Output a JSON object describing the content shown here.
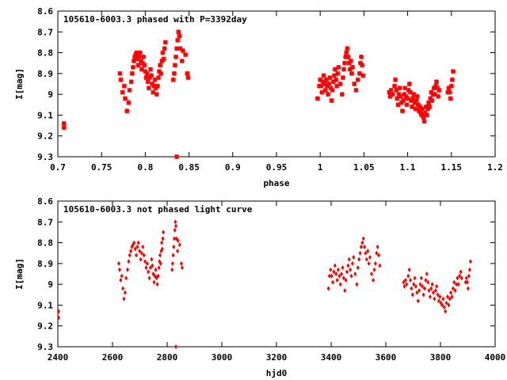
{
  "chart_data": [
    {
      "type": "scatter",
      "title": "105610-6003.3 phased with P=3392day",
      "xlabel": "phase",
      "ylabel": "I[mag]",
      "xlim": [
        0.7,
        1.2
      ],
      "ylim": [
        8.6,
        9.3
      ],
      "y_inverted": true,
      "x_ticks": [
        "0.7",
        "0.75",
        "0.8",
        "0.85",
        "0.9",
        "0.95",
        "1",
        "1.05",
        "1.1",
        "1.15",
        "1.2"
      ],
      "y_ticks": [
        "8.6",
        "8.7",
        "8.8",
        "8.9",
        "9",
        "9.1",
        "9.2",
        "9.3"
      ],
      "marker": "cross",
      "color": "#ff0000",
      "points": [
        [
          0.707,
          9.14
        ],
        [
          0.707,
          9.16
        ],
        [
          0.771,
          8.9
        ],
        [
          0.772,
          8.93
        ],
        [
          0.774,
          8.99
        ],
        [
          0.776,
          8.96
        ],
        [
          0.777,
          9.02
        ],
        [
          0.779,
          9.08
        ],
        [
          0.781,
          9.04
        ],
        [
          0.782,
          8.98
        ],
        [
          0.784,
          8.94
        ],
        [
          0.785,
          8.9
        ],
        [
          0.786,
          8.87
        ],
        [
          0.787,
          8.84
        ],
        [
          0.788,
          8.82
        ],
        [
          0.789,
          8.81
        ],
        [
          0.79,
          8.8
        ],
        [
          0.791,
          8.83
        ],
        [
          0.792,
          8.86
        ],
        [
          0.793,
          8.82
        ],
        [
          0.794,
          8.8
        ],
        [
          0.795,
          8.84
        ],
        [
          0.796,
          8.88
        ],
        [
          0.797,
          8.85
        ],
        [
          0.798,
          8.82
        ],
        [
          0.799,
          8.86
        ],
        [
          0.8,
          8.89
        ],
        [
          0.801,
          8.92
        ],
        [
          0.802,
          8.9
        ],
        [
          0.803,
          8.94
        ],
        [
          0.804,
          8.97
        ],
        [
          0.805,
          8.92
        ],
        [
          0.806,
          8.88
        ],
        [
          0.807,
          8.91
        ],
        [
          0.808,
          8.95
        ],
        [
          0.809,
          8.99
        ],
        [
          0.81,
          8.96
        ],
        [
          0.811,
          8.93
        ],
        [
          0.812,
          8.97
        ],
        [
          0.813,
          9.0
        ],
        [
          0.814,
          8.96
        ],
        [
          0.815,
          8.92
        ],
        [
          0.816,
          8.89
        ],
        [
          0.817,
          8.86
        ],
        [
          0.818,
          8.9
        ],
        [
          0.819,
          8.84
        ],
        [
          0.82,
          8.8
        ],
        [
          0.821,
          8.83
        ],
        [
          0.822,
          8.78
        ],
        [
          0.823,
          8.75
        ],
        [
          0.832,
          8.93
        ],
        [
          0.833,
          8.9
        ],
        [
          0.834,
          8.86
        ],
        [
          0.835,
          8.82
        ],
        [
          0.836,
          8.78
        ],
        [
          0.837,
          8.74
        ],
        [
          0.838,
          8.7
        ],
        [
          0.839,
          8.72
        ],
        [
          0.84,
          8.78
        ],
        [
          0.842,
          8.84
        ],
        [
          0.843,
          8.79
        ],
        [
          0.846,
          8.81
        ],
        [
          0.848,
          8.9
        ],
        [
          0.849,
          8.92
        ],
        [
          0.836,
          9.3
        ],
        [
          0.997,
          9.02
        ],
        [
          0.999,
          8.96
        ],
        [
          1.0,
          8.93
        ],
        [
          1.001,
          8.96
        ],
        [
          1.002,
          8.99
        ],
        [
          1.003,
          8.94
        ],
        [
          1.004,
          8.91
        ],
        [
          1.005,
          8.95
        ],
        [
          1.006,
          8.98
        ],
        [
          1.007,
          8.93
        ],
        [
          1.008,
          8.96
        ],
        [
          1.009,
          9.0
        ],
        [
          1.01,
          8.95
        ],
        [
          1.011,
          8.92
        ],
        [
          1.012,
          8.97
        ],
        [
          1.013,
          9.03
        ],
        [
          1.014,
          8.98
        ],
        [
          1.015,
          8.94
        ],
        [
          1.016,
          8.91
        ],
        [
          1.017,
          8.88
        ],
        [
          1.018,
          8.93
        ],
        [
          1.019,
          8.96
        ],
        [
          1.02,
          8.9
        ],
        [
          1.021,
          8.87
        ],
        [
          1.023,
          8.95
        ],
        [
          1.025,
          9.0
        ],
        [
          1.026,
          8.92
        ],
        [
          1.027,
          8.88
        ],
        [
          1.028,
          8.85
        ],
        [
          1.029,
          8.82
        ],
        [
          1.03,
          8.8
        ],
        [
          1.031,
          8.78
        ],
        [
          1.032,
          8.82
        ],
        [
          1.033,
          8.85
        ],
        [
          1.034,
          8.88
        ],
        [
          1.035,
          8.84
        ],
        [
          1.036,
          8.9
        ],
        [
          1.037,
          8.87
        ],
        [
          1.039,
          8.95
        ],
        [
          1.041,
          8.98
        ],
        [
          1.043,
          8.93
        ],
        [
          1.045,
          8.9
        ],
        [
          1.046,
          8.85
        ],
        [
          1.047,
          8.82
        ],
        [
          1.048,
          8.86
        ],
        [
          1.049,
          8.91
        ],
        [
          1.079,
          8.99
        ],
        [
          1.08,
          9.01
        ],
        [
          1.081,
          8.98
        ],
        [
          1.083,
          9.0
        ],
        [
          1.085,
          8.96
        ],
        [
          1.086,
          8.93
        ],
        [
          1.087,
          8.98
        ],
        [
          1.088,
          9.02
        ],
        [
          1.089,
          9.05
        ],
        [
          1.09,
          9.0
        ],
        [
          1.091,
          8.97
        ],
        [
          1.092,
          9.01
        ],
        [
          1.093,
          9.04
        ],
        [
          1.094,
          9.08
        ],
        [
          1.095,
          9.03
        ],
        [
          1.096,
          9.0
        ],
        [
          1.097,
          8.97
        ],
        [
          1.098,
          9.01
        ],
        [
          1.099,
          9.05
        ],
        [
          1.1,
          9.02
        ],
        [
          1.101,
          8.98
        ],
        [
          1.102,
          8.95
        ],
        [
          1.103,
          8.99
        ],
        [
          1.104,
          9.03
        ],
        [
          1.105,
          9.06
        ],
        [
          1.106,
          9.02
        ],
        [
          1.107,
          9.0
        ],
        [
          1.108,
          9.04
        ],
        [
          1.109,
          9.07
        ],
        [
          1.11,
          9.03
        ],
        [
          1.111,
          9.01
        ],
        [
          1.112,
          9.05
        ],
        [
          1.113,
          9.08
        ],
        [
          1.114,
          9.06
        ],
        [
          1.115,
          9.09
        ],
        [
          1.116,
          9.1
        ],
        [
          1.117,
          9.07
        ],
        [
          1.118,
          9.11
        ],
        [
          1.119,
          9.13
        ],
        [
          1.12,
          9.09
        ],
        [
          1.121,
          9.06
        ],
        [
          1.122,
          9.1
        ],
        [
          1.123,
          9.07
        ],
        [
          1.124,
          9.04
        ],
        [
          1.125,
          9.06
        ],
        [
          1.126,
          9.02
        ],
        [
          1.127,
          8.99
        ],
        [
          1.128,
          9.03
        ],
        [
          1.129,
          9.0
        ],
        [
          1.13,
          8.97
        ],
        [
          1.131,
          9.0
        ],
        [
          1.132,
          8.96
        ],
        [
          1.133,
          8.94
        ],
        [
          1.134,
          8.97
        ],
        [
          1.135,
          9.01
        ],
        [
          1.136,
          8.98
        ],
        [
          1.146,
          8.99
        ],
        [
          1.147,
          8.97
        ],
        [
          1.148,
          8.99
        ],
        [
          1.149,
          9.02
        ],
        [
          1.15,
          8.96
        ],
        [
          1.151,
          8.93
        ],
        [
          1.152,
          8.89
        ]
      ]
    },
    {
      "type": "scatter",
      "title": "105610-6003.3 not phased light curve",
      "xlabel": "hjd0",
      "ylabel": "I[mag]",
      "xlim": [
        2400,
        4000
      ],
      "ylim": [
        8.6,
        9.3
      ],
      "y_inverted": true,
      "x_ticks": [
        "2400",
        "2600",
        "2800",
        "3000",
        "3200",
        "3400",
        "3600",
        "3800",
        "4000"
      ],
      "y_ticks": [
        "8.6",
        "8.7",
        "8.8",
        "8.9",
        "9",
        "9.1",
        "9.2",
        "9.3"
      ],
      "marker": "diamond",
      "color": "#ff0000",
      "points": [
        [
          2403,
          9.13
        ],
        [
          2403,
          9.16
        ],
        [
          2623,
          8.9
        ],
        [
          2626,
          8.93
        ],
        [
          2630,
          8.98
        ],
        [
          2634,
          8.96
        ],
        [
          2638,
          9.02
        ],
        [
          2642,
          9.07
        ],
        [
          2646,
          9.04
        ],
        [
          2650,
          8.97
        ],
        [
          2655,
          8.93
        ],
        [
          2659,
          8.89
        ],
        [
          2663,
          8.86
        ],
        [
          2667,
          8.84
        ],
        [
          2671,
          8.82
        ],
        [
          2675,
          8.81
        ],
        [
          2679,
          8.8
        ],
        [
          2683,
          8.83
        ],
        [
          2687,
          8.86
        ],
        [
          2691,
          8.82
        ],
        [
          2695,
          8.8
        ],
        [
          2699,
          8.84
        ],
        [
          2703,
          8.88
        ],
        [
          2707,
          8.85
        ],
        [
          2711,
          8.82
        ],
        [
          2715,
          8.86
        ],
        [
          2719,
          8.89
        ],
        [
          2723,
          8.92
        ],
        [
          2727,
          8.9
        ],
        [
          2731,
          8.94
        ],
        [
          2735,
          8.97
        ],
        [
          2739,
          8.92
        ],
        [
          2743,
          8.88
        ],
        [
          2746,
          8.91
        ],
        [
          2749,
          8.95
        ],
        [
          2752,
          8.99
        ],
        [
          2755,
          8.96
        ],
        [
          2758,
          8.93
        ],
        [
          2761,
          8.97
        ],
        [
          2764,
          9.0
        ],
        [
          2767,
          8.96
        ],
        [
          2770,
          8.92
        ],
        [
          2772,
          8.89
        ],
        [
          2774,
          8.86
        ],
        [
          2776,
          8.9
        ],
        [
          2778,
          8.84
        ],
        [
          2780,
          8.8
        ],
        [
          2782,
          8.83
        ],
        [
          2784,
          8.78
        ],
        [
          2786,
          8.75
        ],
        [
          2818,
          8.93
        ],
        [
          2820,
          8.9
        ],
        [
          2822,
          8.86
        ],
        [
          2824,
          8.82
        ],
        [
          2826,
          8.78
        ],
        [
          2828,
          8.74
        ],
        [
          2830,
          8.7
        ],
        [
          2832,
          8.72
        ],
        [
          2834,
          8.78
        ],
        [
          2838,
          8.84
        ],
        [
          2840,
          8.79
        ],
        [
          2846,
          8.81
        ],
        [
          2852,
          8.9
        ],
        [
          2855,
          8.92
        ],
        [
          2832,
          9.3
        ],
        [
          3390,
          9.02
        ],
        [
          3394,
          8.96
        ],
        [
          3398,
          8.93
        ],
        [
          3402,
          8.96
        ],
        [
          3406,
          8.99
        ],
        [
          3410,
          8.94
        ],
        [
          3414,
          8.91
        ],
        [
          3418,
          8.95
        ],
        [
          3422,
          8.98
        ],
        [
          3426,
          8.93
        ],
        [
          3430,
          8.96
        ],
        [
          3434,
          9.0
        ],
        [
          3438,
          8.95
        ],
        [
          3442,
          8.92
        ],
        [
          3446,
          8.97
        ],
        [
          3450,
          9.03
        ],
        [
          3454,
          8.98
        ],
        [
          3458,
          8.94
        ],
        [
          3462,
          8.91
        ],
        [
          3466,
          8.88
        ],
        [
          3470,
          8.93
        ],
        [
          3474,
          8.96
        ],
        [
          3478,
          8.9
        ],
        [
          3482,
          8.87
        ],
        [
          3488,
          8.95
        ],
        [
          3494,
          9.0
        ],
        [
          3498,
          8.92
        ],
        [
          3502,
          8.88
        ],
        [
          3506,
          8.85
        ],
        [
          3510,
          8.82
        ],
        [
          3514,
          8.8
        ],
        [
          3518,
          8.78
        ],
        [
          3522,
          8.82
        ],
        [
          3526,
          8.85
        ],
        [
          3530,
          8.88
        ],
        [
          3534,
          8.84
        ],
        [
          3538,
          8.9
        ],
        [
          3542,
          8.87
        ],
        [
          3548,
          8.95
        ],
        [
          3554,
          8.98
        ],
        [
          3558,
          8.93
        ],
        [
          3562,
          8.9
        ],
        [
          3566,
          8.85
        ],
        [
          3570,
          8.82
        ],
        [
          3574,
          8.86
        ],
        [
          3578,
          8.91
        ],
        [
          3665,
          8.99
        ],
        [
          3668,
          9.01
        ],
        [
          3672,
          8.98
        ],
        [
          3676,
          9.0
        ],
        [
          3682,
          8.96
        ],
        [
          3686,
          8.93
        ],
        [
          3690,
          8.98
        ],
        [
          3694,
          9.02
        ],
        [
          3698,
          9.05
        ],
        [
          3702,
          9.0
        ],
        [
          3706,
          8.97
        ],
        [
          3710,
          9.01
        ],
        [
          3714,
          9.04
        ],
        [
          3718,
          9.08
        ],
        [
          3722,
          9.03
        ],
        [
          3726,
          9.0
        ],
        [
          3730,
          8.97
        ],
        [
          3734,
          9.01
        ],
        [
          3738,
          9.05
        ],
        [
          3742,
          9.02
        ],
        [
          3746,
          8.98
        ],
        [
          3750,
          8.95
        ],
        [
          3754,
          8.99
        ],
        [
          3758,
          9.03
        ],
        [
          3762,
          9.06
        ],
        [
          3766,
          9.02
        ],
        [
          3770,
          9.0
        ],
        [
          3774,
          9.04
        ],
        [
          3778,
          9.07
        ],
        [
          3782,
          9.03
        ],
        [
          3786,
          9.01
        ],
        [
          3790,
          9.05
        ],
        [
          3794,
          9.08
        ],
        [
          3798,
          9.06
        ],
        [
          3802,
          9.09
        ],
        [
          3806,
          9.1
        ],
        [
          3810,
          9.07
        ],
        [
          3814,
          9.11
        ],
        [
          3818,
          9.13
        ],
        [
          3822,
          9.09
        ],
        [
          3826,
          9.06
        ],
        [
          3830,
          9.1
        ],
        [
          3834,
          9.07
        ],
        [
          3838,
          9.04
        ],
        [
          3842,
          9.06
        ],
        [
          3846,
          9.02
        ],
        [
          3850,
          8.99
        ],
        [
          3854,
          9.03
        ],
        [
          3858,
          9.0
        ],
        [
          3862,
          8.97
        ],
        [
          3866,
          9.0
        ],
        [
          3870,
          8.96
        ],
        [
          3874,
          8.94
        ],
        [
          3878,
          8.97
        ],
        [
          3892,
          8.99
        ],
        [
          3895,
          8.97
        ],
        [
          3898,
          8.99
        ],
        [
          3901,
          9.02
        ],
        [
          3904,
          8.96
        ],
        [
          3907,
          8.93
        ],
        [
          3910,
          8.89
        ]
      ]
    }
  ]
}
